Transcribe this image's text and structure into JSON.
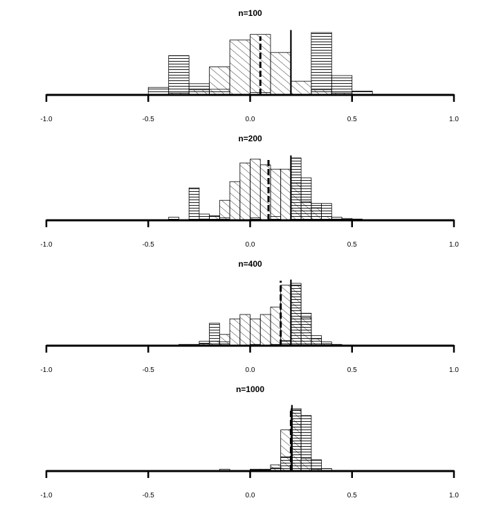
{
  "chart_data": [
    {
      "type": "bar",
      "title": "n=100",
      "xlim": [
        -1.0,
        1.0
      ],
      "x_ticks": [
        "-1.0",
        "-0.5",
        "0.0",
        "0.5",
        "1.0"
      ],
      "x_tick_values": [
        -1.0,
        -0.5,
        0.0,
        0.5,
        1.0
      ],
      "bin_width": 0.1,
      "ylim": [
        0,
        1.0
      ],
      "series": [
        {
          "pattern": "horizontal",
          "bins": [
            [
              -0.8,
              0.01
            ],
            [
              -0.5,
              0.12
            ],
            [
              -0.4,
              0.63
            ],
            [
              -0.3,
              0.18
            ],
            [
              -0.2,
              0.09
            ],
            [
              0.0,
              0.04
            ],
            [
              0.2,
              0.01
            ],
            [
              0.3,
              1.0
            ],
            [
              0.4,
              0.31
            ],
            [
              0.5,
              0.06
            ],
            [
              0.6,
              0.01
            ]
          ]
        },
        {
          "pattern": "diagonal",
          "bins": [
            [
              -0.4,
              0.03
            ],
            [
              -0.3,
              0.08
            ],
            [
              -0.2,
              0.45
            ],
            [
              -0.1,
              0.88
            ],
            [
              0.0,
              0.97
            ],
            [
              0.1,
              0.68
            ],
            [
              0.2,
              0.22
            ],
            [
              0.3,
              0.08
            ],
            [
              0.4,
              0.03
            ]
          ]
        }
      ],
      "reference_lines": [
        {
          "style": "dashed",
          "x": 0.05,
          "height": 0.94
        },
        {
          "style": "solid",
          "x": 0.2,
          "height": 1.04
        }
      ]
    },
    {
      "type": "bar",
      "title": "n=200",
      "xlim": [
        -1.0,
        1.0
      ],
      "x_ticks": [
        "-1.0",
        "-0.5",
        "0.0",
        "0.5",
        "1.0"
      ],
      "x_tick_values": [
        -1.0,
        -0.5,
        0.0,
        0.5,
        1.0
      ],
      "bin_width": 0.05,
      "ylim": [
        0,
        1.0
      ],
      "series": [
        {
          "pattern": "horizontal",
          "bins": [
            [
              -0.4,
              0.05
            ],
            [
              -0.3,
              0.52
            ],
            [
              -0.25,
              0.1
            ],
            [
              -0.2,
              0.07
            ],
            [
              -0.15,
              0.04
            ],
            [
              0.0,
              0.04
            ],
            [
              0.1,
              0.06
            ],
            [
              0.2,
              1.0
            ],
            [
              0.25,
              0.68
            ],
            [
              0.3,
              0.27
            ],
            [
              0.35,
              0.27
            ],
            [
              0.4,
              0.05
            ],
            [
              0.45,
              0.03
            ],
            [
              0.5,
              0.02
            ]
          ]
        },
        {
          "pattern": "diagonal",
          "bins": [
            [
              -0.25,
              0.02
            ],
            [
              -0.2,
              0.07
            ],
            [
              -0.15,
              0.32
            ],
            [
              -0.1,
              0.62
            ],
            [
              -0.05,
              0.92
            ],
            [
              0.0,
              0.98
            ],
            [
              0.05,
              0.89
            ],
            [
              0.1,
              0.82
            ],
            [
              0.15,
              0.82
            ],
            [
              0.2,
              0.6
            ],
            [
              0.25,
              0.3
            ],
            [
              0.3,
              0.2
            ],
            [
              0.35,
              0.06
            ],
            [
              0.4,
              0.02
            ]
          ]
        }
      ],
      "reference_lines": [
        {
          "style": "dashed",
          "x": 0.09,
          "height": 1.0
        },
        {
          "style": "solid",
          "x": 0.2,
          "height": 1.04
        }
      ]
    },
    {
      "type": "bar",
      "title": "n=400",
      "xlim": [
        -1.0,
        1.0
      ],
      "x_ticks": [
        "-1.0",
        "-0.5",
        "0.0",
        "0.5",
        "1.0"
      ],
      "x_tick_values": [
        -1.0,
        -0.5,
        0.0,
        0.5,
        1.0
      ],
      "bin_width": 0.05,
      "ylim": [
        0,
        1.0
      ],
      "series": [
        {
          "pattern": "horizontal",
          "bins": [
            [
              -0.35,
              0.02
            ],
            [
              -0.25,
              0.07
            ],
            [
              -0.2,
              0.36
            ],
            [
              -0.15,
              0.06
            ],
            [
              0.0,
              0.02
            ],
            [
              0.1,
              0.02
            ],
            [
              0.15,
              0.08
            ],
            [
              0.2,
              1.0
            ],
            [
              0.25,
              0.52
            ],
            [
              0.3,
              0.16
            ],
            [
              0.35,
              0.06
            ],
            [
              0.4,
              0.02
            ]
          ]
        },
        {
          "pattern": "diagonal",
          "bins": [
            [
              -0.3,
              0.02
            ],
            [
              -0.25,
              0.04
            ],
            [
              -0.2,
              0.07
            ],
            [
              -0.15,
              0.18
            ],
            [
              -0.1,
              0.43
            ],
            [
              -0.05,
              0.5
            ],
            [
              0.0,
              0.43
            ],
            [
              0.05,
              0.5
            ],
            [
              0.1,
              0.62
            ],
            [
              0.15,
              0.97
            ],
            [
              0.2,
              0.97
            ],
            [
              0.25,
              0.45
            ],
            [
              0.3,
              0.11
            ],
            [
              0.35,
              0.03
            ]
          ]
        }
      ],
      "reference_lines": [
        {
          "style": "dashed",
          "x": 0.15,
          "height": 1.04
        },
        {
          "style": "solid",
          "x": 0.2,
          "height": 1.06
        }
      ]
    },
    {
      "type": "bar",
      "title": "n=1000",
      "xlim": [
        -1.0,
        1.0
      ],
      "x_ticks": [
        "-1.0",
        "-0.5",
        "0.0",
        "0.5",
        "1.0"
      ],
      "x_tick_values": [
        -1.0,
        -0.5,
        0.0,
        0.5,
        1.0
      ],
      "bin_width": 0.05,
      "ylim": [
        0,
        1.0
      ],
      "series": [
        {
          "pattern": "horizontal",
          "bins": [
            [
              -0.15,
              0.03
            ],
            [
              0.0,
              0.03
            ],
            [
              0.05,
              0.02
            ],
            [
              0.1,
              0.05
            ],
            [
              0.15,
              0.23
            ],
            [
              0.2,
              1.0
            ],
            [
              0.25,
              0.89
            ],
            [
              0.3,
              0.18
            ],
            [
              0.35,
              0.04
            ]
          ]
        },
        {
          "pattern": "diagonal",
          "bins": [
            [
              -0.05,
              0.01
            ],
            [
              0.0,
              0.02
            ],
            [
              0.05,
              0.03
            ],
            [
              0.1,
              0.1
            ],
            [
              0.15,
              0.66
            ],
            [
              0.2,
              0.98
            ],
            [
              0.25,
              0.2
            ],
            [
              0.3,
              0.03
            ]
          ]
        }
      ],
      "reference_lines": [
        {
          "style": "dashed",
          "x": 0.2,
          "height": 1.0
        },
        {
          "style": "solid",
          "x": 0.205,
          "height": 1.06
        }
      ]
    }
  ]
}
